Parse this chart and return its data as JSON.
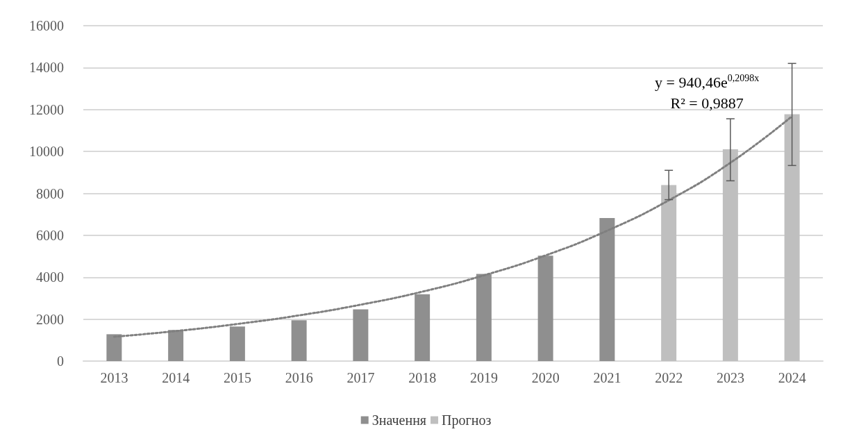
{
  "chart_data": {
    "type": "bar",
    "categories": [
      "2013",
      "2014",
      "2015",
      "2016",
      "2017",
      "2018",
      "2019",
      "2020",
      "2021",
      "2022",
      "2023",
      "2024"
    ],
    "series": [
      {
        "name": "Значення",
        "color": "#8f8f8f",
        "values": [
          1280,
          1480,
          1650,
          1950,
          2470,
          3190,
          4160,
          5030,
          6820,
          null,
          null,
          null
        ]
      },
      {
        "name": "Прогноз",
        "color": "#bfbfbf",
        "values": [
          null,
          null,
          null,
          null,
          null,
          null,
          null,
          null,
          null,
          8400,
          10100,
          11780
        ],
        "errors": [
          null,
          null,
          null,
          null,
          null,
          null,
          null,
          null,
          null,
          [
            7700,
            9100
          ],
          [
            8600,
            11560
          ],
          [
            9330,
            14200
          ]
        ]
      },
      {
        "type": "line",
        "color": "#7f7f7f",
        "line_style": "dotted",
        "marker": "none",
        "values": [
          1160,
          1430,
          1770,
          2180,
          2690,
          3310,
          4090,
          5040,
          6220,
          7670,
          9460,
          11680
        ]
      }
    ],
    "ylim": [
      0,
      16000
    ],
    "yticks": [
      0,
      2000,
      4000,
      6000,
      8000,
      10000,
      12000,
      14000,
      16000
    ],
    "grid": "y",
    "legend": "bottom",
    "annotations": [
      "y = 940,46e$^{0,2098x}$",
      "R² = 0,9887"
    ]
  }
}
